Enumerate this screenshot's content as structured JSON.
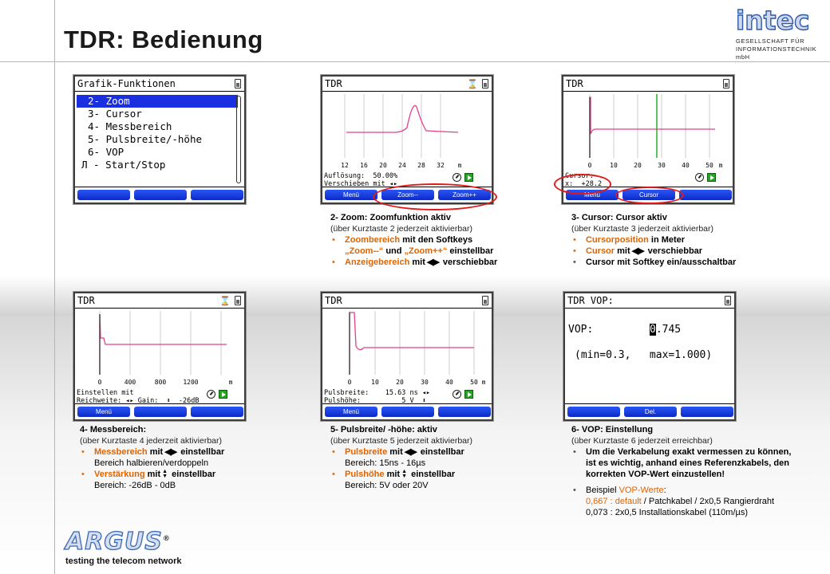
{
  "page_title": "TDR: Bedienung",
  "logo": {
    "word": "intec",
    "sub1": "GESELLSCHAFT FÜR",
    "sub2": "INFORMATIONSTECHNIK mbH"
  },
  "argus": {
    "word": "ARGUS",
    "reg": "®",
    "tagline": "testing the telecom network"
  },
  "accent_color": "#e06400",
  "softkey_color": "#1a3be8",
  "icons": [
    "battery-icon",
    "hourglass-icon",
    "clock-icon",
    "play-icon",
    "left-right-arrows-icon",
    "up-down-arrows-icon",
    "pulse-icon"
  ],
  "screen_menu": {
    "title": "Grafik-Funktionen",
    "items": [
      {
        "num": "2-",
        "label": "Zoom"
      },
      {
        "num": "3-",
        "label": "Cursor"
      },
      {
        "num": "4-",
        "label": "Messbereich"
      },
      {
        "num": "5-",
        "label": "Pulsbreite/-höhe"
      },
      {
        "num": "6-",
        "label": "VOP"
      },
      {
        "num": "Л -",
        "label": "Start/Stop"
      }
    ]
  },
  "screen_zoom": {
    "title": "TDR",
    "hourglass": "⌛",
    "ticks": [
      "12",
      "16",
      "20",
      "24",
      "28",
      "32"
    ],
    "unit": "m",
    "line1": "Auflösung:  50.00%",
    "line2": "Verschieben mit ◂▸",
    "keys": [
      "Menü",
      "Zoom--",
      "Zoom++"
    ]
  },
  "screen_cursor": {
    "title": "TDR",
    "ticks": [
      "0",
      "10",
      "20",
      "30",
      "40",
      "50"
    ],
    "unit": "m",
    "line1": "Cursor:",
    "line2": "x:  +28.2",
    "keys": [
      "Menü",
      "Cursor"
    ]
  },
  "screen_range": {
    "title": "TDR",
    "hourglass": "⌛",
    "ticks": [
      "0",
      "400",
      "800",
      "1200"
    ],
    "unit": "m",
    "line1": "Einstellen mit",
    "line2": "Reichweite: ◂▸ Gain:  ⬍  -26dB",
    "keys": [
      "Menü"
    ]
  },
  "screen_pulse": {
    "title": "TDR",
    "ticks": [
      "0",
      "10",
      "20",
      "30",
      "40",
      "50"
    ],
    "unit": "m",
    "line1": "Pulsbreite:    15.63 ns ◂▸",
    "line2": "Pulshöhe:          5 V  ⬍",
    "keys": [
      "Menü"
    ]
  },
  "screen_vop": {
    "title": "TDR VOP:",
    "label": "VOP:",
    "cursor_digit": "0",
    "value_rest": ".745",
    "range": "(min=0.3,   max=1.000)",
    "keys": [
      "Del."
    ]
  },
  "desc_zoom": {
    "head": "2- Zoom: Zoomfunktion aktiv",
    "sub": "(über Kurztaste 2 jederzeit aktivierbar)",
    "b1_hl": "Zoombereich",
    "b1_rest": " mit den Softkeys",
    "b1_l2_q1": "„Zoom--“",
    "b1_l2_mid": " und ",
    "b1_l2_q2": "„Zoom++“",
    "b1_l2_end": " einstellbar",
    "b2_hl": "Anzeigebereich",
    "b2_rest": " mit",
    "b2_end": " verschiebbar"
  },
  "desc_cursor": {
    "head": "3- Cursor: Cursor aktiv",
    "sub": "(über Kurztaste 3 jederzeit aktivierbar)",
    "b1_hl": "Cursorposition",
    "b1_rest": " in Meter",
    "b2_hl": "Cursor",
    "b2_rest": " mit",
    "b2_end": " verschiebbar",
    "b3": "Cursor mit Softkey ein/ausschaltbar"
  },
  "desc_range": {
    "head": "4- Messbereich:",
    "sub": "(über Kurztaste 4 jederzeit aktivierbar)",
    "b1_hl": "Messbereich",
    "b1_rest": " mit",
    "b1_end": " einstellbar",
    "b1_l2": "Bereich halbieren/verdoppeln",
    "b2_hl": "Verstärkung",
    "b2_rest": " mit",
    "b2_end": " einstellbar",
    "b2_l2": "Bereich: -26dB - 0dB"
  },
  "desc_pulse": {
    "head": "5- Pulsbreite/ -höhe: aktiv",
    "sub": "(über Kurztaste 5 jederzeit aktivierbar)",
    "b1_hl": "Pulsbreite",
    "b1_rest": " mit",
    "b1_end": " einstellbar",
    "b1_l2": "Bereich: 15ns - 16µs",
    "b2_hl": "Pulshöhe",
    "b2_rest": " mit",
    "b2_end": " einstellbar",
    "b2_l2": "Bereich: 5V oder 20V"
  },
  "desc_vop": {
    "head": "6- VOP:  Einstellung",
    "sub": "(über Kurztaste 6 jederzeit erreichbar)",
    "b1": "Um die Verkabelung exakt vermessen zu können, ist es wichtig, anhand eines Referenzkabels, den korrekten VOP-Wert einzustellen!",
    "b2_pre": "Beispiel ",
    "b2_hl": "VOP-Werte",
    "b2_colon": ":",
    "b2_l2_hl": "0,667 : default",
    "b2_l2_rest": " / Patchkabel / 2x0,5 Rangierdraht",
    "b2_l3": "0,073 :  2x0,5 Installationskabel (110m/µs)"
  }
}
